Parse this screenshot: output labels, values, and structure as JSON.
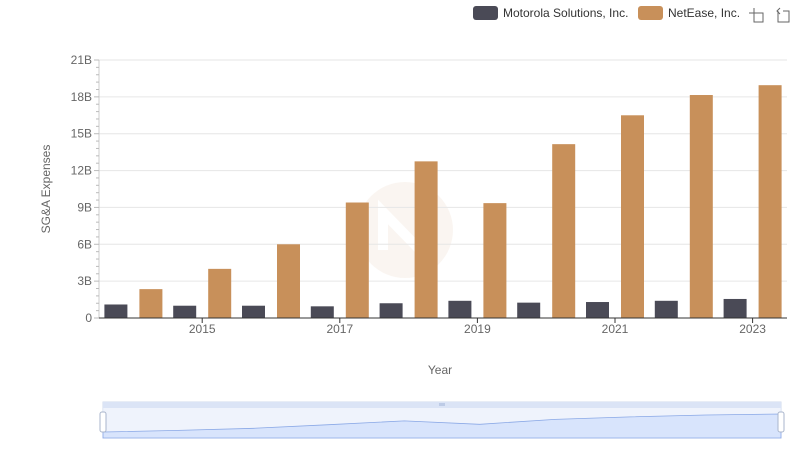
{
  "chart_data": {
    "type": "bar",
    "title": "",
    "xlabel": "Year",
    "ylabel": "SG&A Expenses",
    "x": [
      2014,
      2015,
      2016,
      2017,
      2018,
      2019,
      2020,
      2021,
      2022,
      2023
    ],
    "x_tick_labels": [
      "2015",
      "2017",
      "2019",
      "2021",
      "2023"
    ],
    "x_tick_values": [
      2015,
      2017,
      2019,
      2021,
      2023
    ],
    "ylim": [
      0,
      21000000000
    ],
    "y_ticks": [
      0,
      3000000000,
      6000000000,
      9000000000,
      12000000000,
      15000000000,
      18000000000,
      21000000000
    ],
    "y_tick_labels": [
      "0",
      "3B",
      "6B",
      "9B",
      "12B",
      "15B",
      "18B",
      "21B"
    ],
    "grid": true,
    "legend_position": "top-right",
    "series": [
      {
        "name": "Motorola Solutions, Inc.",
        "color": "#4a4a56",
        "values": [
          1100000000,
          1000000000,
          1000000000,
          950000000,
          1200000000,
          1400000000,
          1250000000,
          1300000000,
          1400000000,
          1550000000
        ]
      },
      {
        "name": "NetEase, Inc.",
        "color": "#c8905a",
        "values": [
          2350000000,
          4000000000,
          6000000000,
          9400000000,
          12750000000,
          9350000000,
          14150000000,
          16500000000,
          18150000000,
          18950000000
        ]
      }
    ]
  },
  "toolbar": {
    "zoom_icon": "data-zoom-icon",
    "restore_icon": "restore-icon"
  },
  "slider": {
    "handle_icon": "drag-handle-icon",
    "fill_color": "#d8e4fc",
    "line_color": "#8aa8e6"
  }
}
